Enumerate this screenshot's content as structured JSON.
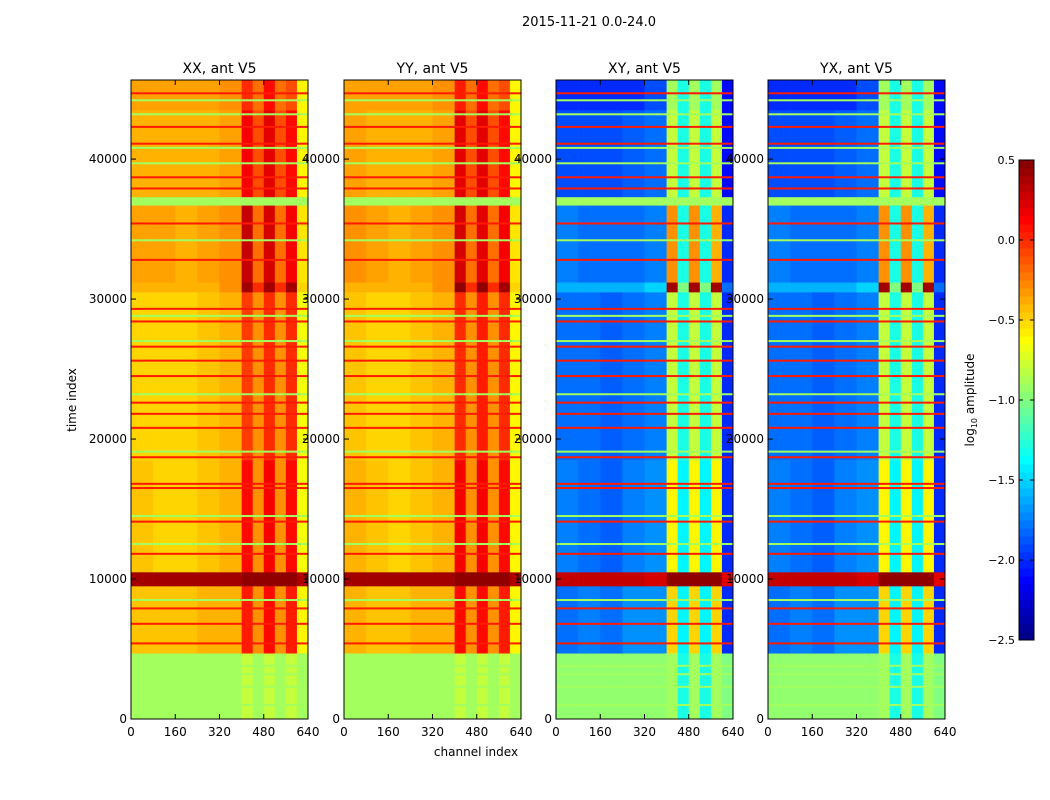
{
  "chart_data": {
    "type": "heatmap",
    "title": "2015-11-21 0.0-24.0",
    "xlabel": "channel index",
    "ylabel": "time index",
    "xlim": [
      0,
      640
    ],
    "ylim": [
      0,
      45650
    ],
    "xticks": [
      "0",
      "160",
      "320",
      "480",
      "640"
    ],
    "xtick_values": [
      0,
      160,
      320,
      480,
      640
    ],
    "yticks": [
      "0",
      "10000",
      "20000",
      "30000",
      "40000"
    ],
    "ytick_values": [
      0,
      10000,
      20000,
      30000,
      40000
    ],
    "colorbar": {
      "label": "log",
      "label_sub": "10",
      "label_rest": " amplitude",
      "range": [
        -2.5,
        0.5
      ],
      "ticks": [
        "0.5",
        "0.0",
        "−0.5",
        "−1.0",
        "−1.5",
        "−2.0",
        "−2.5"
      ],
      "tick_values": [
        0.5,
        0.0,
        -0.5,
        -1.0,
        -1.5,
        -2.0,
        -2.5
      ],
      "colormap": "jet"
    },
    "channel_edges": [
      0,
      80,
      160,
      240,
      320,
      400,
      440,
      480,
      520,
      560,
      600,
      640
    ],
    "red_lines": [
      5400,
      6800,
      7900,
      11800,
      14100,
      16500,
      16800,
      18700,
      20800,
      21800,
      22600,
      24500,
      25600,
      26600,
      28400,
      29300,
      32800,
      35400,
      37900,
      38700,
      41100,
      42300,
      44700
    ],
    "green_lines": [
      1000,
      2300,
      3200,
      3800,
      8500,
      12500,
      14500,
      19100,
      23200,
      27000,
      28800,
      34200,
      39700,
      40800,
      43200,
      44200
    ],
    "panels": [
      {
        "title": "XX, ant V5",
        "segments": [
          {
            "t": [
              0,
              4700
            ],
            "v": [
              -0.9,
              -0.9,
              -0.9,
              -0.9,
              -0.9,
              -0.8,
              -0.9,
              -0.8,
              -0.9,
              -0.8,
              -0.9
            ]
          },
          {
            "t": [
              4700,
              9500
            ],
            "v": [
              -0.45,
              -0.45,
              -0.45,
              -0.4,
              -0.4,
              0.05,
              -0.3,
              0.1,
              -0.3,
              0.05,
              -0.6
            ]
          },
          {
            "t": [
              9500,
              10500
            ],
            "v": [
              0.4,
              0.4,
              0.4,
              0.4,
              0.4,
              0.45,
              0.45,
              0.45,
              0.45,
              0.45,
              0.35
            ]
          },
          {
            "t": [
              10500,
              18500
            ],
            "v": [
              -0.45,
              -0.5,
              -0.5,
              -0.45,
              -0.4,
              0.1,
              -0.3,
              0.15,
              -0.3,
              0.1,
              -0.65
            ]
          },
          {
            "t": [
              18500,
              30500
            ],
            "v": [
              -0.5,
              -0.5,
              -0.5,
              -0.45,
              -0.4,
              -0.05,
              -0.3,
              0.0,
              -0.3,
              0.0,
              -0.65
            ]
          },
          {
            "t": [
              30500,
              31200
            ],
            "v": [
              -0.4,
              -0.4,
              -0.4,
              -0.4,
              -0.3,
              0.4,
              0.0,
              0.4,
              0.0,
              0.4,
              -0.5
            ]
          },
          {
            "t": [
              31200,
              36700
            ],
            "v": [
              -0.35,
              -0.35,
              -0.4,
              -0.35,
              -0.3,
              0.3,
              -0.2,
              0.25,
              -0.2,
              0.15,
              -0.55
            ]
          },
          {
            "t": [
              36700,
              37300
            ],
            "v": [
              -0.9,
              -0.9,
              -0.9,
              -0.9,
              -0.9,
              -0.9,
              -0.9,
              -0.9,
              -0.9,
              -0.9,
              -0.9
            ]
          },
          {
            "t": [
              37300,
              43500
            ],
            "v": [
              -0.4,
              -0.4,
              -0.4,
              -0.4,
              -0.35,
              0.15,
              -0.1,
              0.2,
              -0.1,
              0.1,
              -0.6
            ]
          },
          {
            "t": [
              43500,
              45650
            ],
            "v": [
              -0.35,
              -0.35,
              -0.35,
              -0.35,
              -0.3,
              0.0,
              -0.2,
              0.1,
              -0.2,
              -0.1,
              -0.6
            ]
          }
        ]
      },
      {
        "title": "YY, ant V5",
        "segments": [
          {
            "t": [
              0,
              4700
            ],
            "v": [
              -0.9,
              -0.9,
              -0.9,
              -0.9,
              -0.9,
              -0.8,
              -0.9,
              -0.8,
              -0.9,
              -0.8,
              -0.9
            ]
          },
          {
            "t": [
              4700,
              9500
            ],
            "v": [
              -0.4,
              -0.45,
              -0.45,
              -0.4,
              -0.4,
              0.1,
              -0.3,
              0.1,
              -0.3,
              0.05,
              -0.6
            ]
          },
          {
            "t": [
              9500,
              10500
            ],
            "v": [
              0.4,
              0.4,
              0.4,
              0.4,
              0.4,
              0.45,
              0.45,
              0.45,
              0.45,
              0.45,
              0.35
            ]
          },
          {
            "t": [
              10500,
              18500
            ],
            "v": [
              -0.4,
              -0.45,
              -0.5,
              -0.45,
              -0.4,
              0.15,
              -0.3,
              0.15,
              -0.3,
              0.1,
              -0.6
            ]
          },
          {
            "t": [
              18500,
              30500
            ],
            "v": [
              -0.45,
              -0.5,
              -0.5,
              -0.45,
              -0.4,
              0.0,
              -0.3,
              0.05,
              -0.3,
              0.0,
              -0.6
            ]
          },
          {
            "t": [
              30500,
              31200
            ],
            "v": [
              -0.4,
              -0.4,
              -0.4,
              -0.4,
              -0.3,
              0.45,
              0.0,
              0.45,
              0.0,
              0.4,
              -0.5
            ]
          },
          {
            "t": [
              31200,
              36700
            ],
            "v": [
              -0.3,
              -0.35,
              -0.4,
              -0.35,
              -0.3,
              0.25,
              -0.2,
              0.2,
              -0.2,
              0.15,
              -0.55
            ]
          },
          {
            "t": [
              36700,
              37300
            ],
            "v": [
              -0.9,
              -0.9,
              -0.9,
              -0.9,
              -0.9,
              -0.9,
              -0.9,
              -0.9,
              -0.9,
              -0.9,
              -0.9
            ]
          },
          {
            "t": [
              37300,
              43500
            ],
            "v": [
              -0.35,
              -0.4,
              -0.4,
              -0.4,
              -0.35,
              0.2,
              -0.1,
              0.2,
              -0.1,
              0.1,
              -0.6
            ]
          },
          {
            "t": [
              43500,
              45650
            ],
            "v": [
              -0.35,
              -0.35,
              -0.35,
              -0.35,
              -0.3,
              0.05,
              -0.2,
              0.1,
              -0.2,
              -0.1,
              -0.6
            ]
          }
        ]
      },
      {
        "title": "XY, ant V5",
        "segments": [
          {
            "t": [
              0,
              4700
            ],
            "v": [
              -0.95,
              -0.95,
              -0.95,
              -0.95,
              -0.95,
              -0.9,
              -1.3,
              -0.9,
              -1.3,
              -0.9,
              -1.0
            ]
          },
          {
            "t": [
              4700,
              9500
            ],
            "v": [
              -1.8,
              -1.75,
              -1.8,
              -1.7,
              -1.7,
              -0.5,
              -1.4,
              -0.5,
              -1.4,
              -0.5,
              -2.0
            ]
          },
          {
            "t": [
              9500,
              10500
            ],
            "v": [
              0.3,
              0.3,
              0.3,
              0.3,
              0.25,
              0.45,
              0.45,
              0.45,
              0.45,
              0.45,
              0.2
            ]
          },
          {
            "t": [
              10500,
              18500
            ],
            "v": [
              -1.75,
              -1.8,
              -1.85,
              -1.75,
              -1.7,
              -0.6,
              -1.4,
              -0.6,
              -1.4,
              -0.6,
              -2.0
            ]
          },
          {
            "t": [
              18500,
              30500
            ],
            "v": [
              -1.8,
              -1.8,
              -1.85,
              -1.8,
              -1.75,
              -0.8,
              -1.3,
              -0.8,
              -1.3,
              -0.8,
              -2.0
            ]
          },
          {
            "t": [
              30500,
              31200
            ],
            "v": [
              -1.6,
              -1.6,
              -1.6,
              -1.6,
              -1.5,
              0.4,
              -1.0,
              0.4,
              -1.0,
              0.4,
              -1.8
            ]
          },
          {
            "t": [
              31200,
              36700
            ],
            "v": [
              -1.75,
              -1.8,
              -1.8,
              -1.8,
              -1.75,
              -0.3,
              -1.3,
              -0.3,
              -1.3,
              -0.4,
              -2.0
            ]
          },
          {
            "t": [
              36700,
              37300
            ],
            "v": [
              -0.9,
              -0.9,
              -0.9,
              -0.9,
              -0.9,
              -0.9,
              -0.9,
              -0.9,
              -0.9,
              -0.9,
              -0.9
            ]
          },
          {
            "t": [
              37300,
              43500
            ],
            "v": [
              -1.9,
              -1.9,
              -1.9,
              -1.85,
              -1.8,
              -0.8,
              -1.3,
              -0.8,
              -1.3,
              -0.8,
              -2.1
            ]
          },
          {
            "t": [
              43500,
              45650
            ],
            "v": [
              -2.0,
              -2.0,
              -2.0,
              -2.0,
              -1.9,
              -0.9,
              -1.3,
              -0.9,
              -1.3,
              -0.9,
              -2.1
            ]
          }
        ]
      },
      {
        "title": "YX, ant V5",
        "segments": [
          {
            "t": [
              0,
              4700
            ],
            "v": [
              -0.95,
              -0.95,
              -0.95,
              -0.95,
              -0.95,
              -0.9,
              -1.3,
              -0.9,
              -1.3,
              -0.9,
              -1.0
            ]
          },
          {
            "t": [
              4700,
              9500
            ],
            "v": [
              -1.8,
              -1.75,
              -1.8,
              -1.7,
              -1.7,
              -0.5,
              -1.4,
              -0.5,
              -1.4,
              -0.5,
              -2.0
            ]
          },
          {
            "t": [
              9500,
              10500
            ],
            "v": [
              0.3,
              0.3,
              0.3,
              0.3,
              0.25,
              0.45,
              0.45,
              0.45,
              0.45,
              0.45,
              0.2
            ]
          },
          {
            "t": [
              10500,
              18500
            ],
            "v": [
              -1.75,
              -1.8,
              -1.85,
              -1.75,
              -1.7,
              -0.6,
              -1.4,
              -0.6,
              -1.4,
              -0.6,
              -2.0
            ]
          },
          {
            "t": [
              18500,
              30500
            ],
            "v": [
              -1.8,
              -1.8,
              -1.85,
              -1.8,
              -1.75,
              -0.8,
              -1.3,
              -0.8,
              -1.3,
              -0.8,
              -2.0
            ]
          },
          {
            "t": [
              30500,
              31200
            ],
            "v": [
              -1.6,
              -1.6,
              -1.6,
              -1.6,
              -1.5,
              0.4,
              -1.0,
              0.4,
              -1.0,
              0.4,
              -1.8
            ]
          },
          {
            "t": [
              31200,
              36700
            ],
            "v": [
              -1.75,
              -1.8,
              -1.8,
              -1.8,
              -1.75,
              -0.3,
              -1.3,
              -0.3,
              -1.3,
              -0.4,
              -2.0
            ]
          },
          {
            "t": [
              36700,
              37300
            ],
            "v": [
              -0.9,
              -0.9,
              -0.9,
              -0.9,
              -0.9,
              -0.9,
              -0.9,
              -0.9,
              -0.9,
              -0.9,
              -0.9
            ]
          },
          {
            "t": [
              37300,
              43500
            ],
            "v": [
              -1.9,
              -1.9,
              -1.9,
              -1.85,
              -1.8,
              -0.8,
              -1.3,
              -0.8,
              -1.3,
              -0.8,
              -2.1
            ]
          },
          {
            "t": [
              43500,
              45650
            ],
            "v": [
              -2.0,
              -2.0,
              -2.0,
              -2.0,
              -1.9,
              -0.9,
              -1.3,
              -0.9,
              -1.3,
              -0.9,
              -2.1
            ]
          }
        ]
      }
    ],
    "line_values": {
      "red": 0.05,
      "green": -0.9
    }
  }
}
